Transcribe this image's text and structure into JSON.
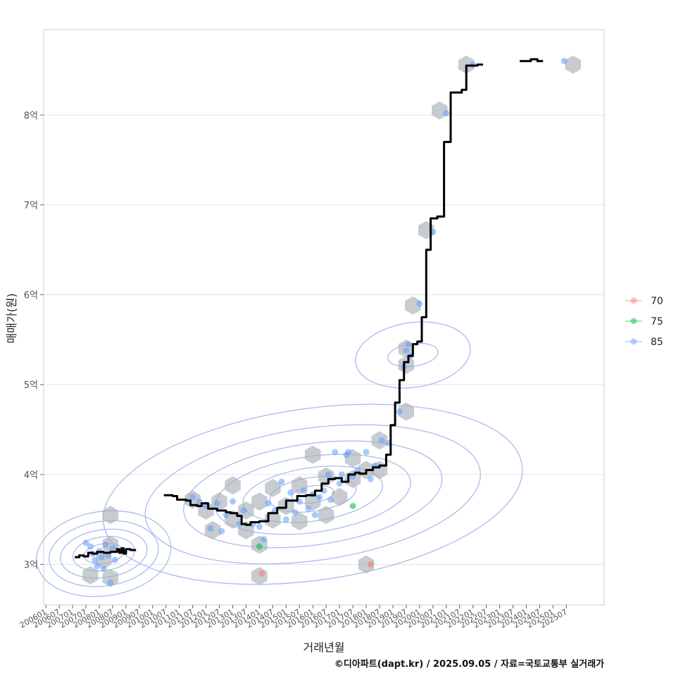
{
  "chart_data": {
    "type": "scatter",
    "xlabel": "거래년월",
    "ylabel": "매매가(원)",
    "caption": "©디아파트(dapt.kr) / 2025.09.05 / 자료=국토교통부 실거래가",
    "ylim": [
      2.55,
      8.95
    ],
    "xlim": [
      "2005-12",
      "2026-12"
    ],
    "y_ticks": [
      {
        "value": 3,
        "label": "3억"
      },
      {
        "value": 4,
        "label": "4억"
      },
      {
        "value": 5,
        "label": "5억"
      },
      {
        "value": 6,
        "label": "6억"
      },
      {
        "value": 7,
        "label": "7억"
      },
      {
        "value": 8,
        "label": "8억"
      }
    ],
    "x_ticks": [
      "200601",
      "200607",
      "200701",
      "200707",
      "200801",
      "200807",
      "200901",
      "200907",
      "201001",
      "201007",
      "201101",
      "201107",
      "201201",
      "201207",
      "201301",
      "201307",
      "201401",
      "201407",
      "201501",
      "201507",
      "201601",
      "201607",
      "201701",
      "201707",
      "201801",
      "201807",
      "201901",
      "201907",
      "202001",
      "202007",
      "202101",
      "202107",
      "202201",
      "202207",
      "202301",
      "202307",
      "202401",
      "202407",
      "202501",
      "202507"
    ],
    "grid": true,
    "legend": {
      "position": "right",
      "items": [
        {
          "label": "70",
          "color": "#f8766d"
        },
        {
          "label": "75",
          "color": "#00ba38"
        },
        {
          "label": "85",
          "color": "#619cff"
        }
      ]
    },
    "colors": {
      "hexbin": "#a9b1b8",
      "contour": "#aabcee",
      "trend_line": "#000000"
    },
    "series": [
      {
        "name": "85",
        "points": [
          [
            "2007-07",
            3.24
          ],
          [
            "2007-09",
            3.2
          ],
          [
            "2007-10",
            3.12
          ],
          [
            "2007-11",
            3.05
          ],
          [
            "2007-12",
            2.98
          ],
          [
            "2008-01",
            3.15
          ],
          [
            "2008-02",
            3.08
          ],
          [
            "2008-03",
            2.95
          ],
          [
            "2008-04",
            3.22
          ],
          [
            "2008-05",
            3.1
          ],
          [
            "2008-06",
            2.8
          ],
          [
            "2008-07",
            3.18
          ],
          [
            "2008-08",
            3.05
          ],
          [
            "2011-07",
            3.75
          ],
          [
            "2011-10",
            3.7
          ],
          [
            "2012-01",
            3.65
          ],
          [
            "2012-03",
            3.4
          ],
          [
            "2012-06",
            3.68
          ],
          [
            "2012-08",
            3.37
          ],
          [
            "2012-10",
            3.55
          ],
          [
            "2013-01",
            3.7
          ],
          [
            "2013-04",
            3.45
          ],
          [
            "2013-06",
            3.6
          ],
          [
            "2013-10",
            3.45
          ],
          [
            "2014-01",
            3.42
          ],
          [
            "2014-03",
            3.28
          ],
          [
            "2014-05",
            3.68
          ],
          [
            "2014-08",
            3.6
          ],
          [
            "2014-11",
            3.92
          ],
          [
            "2015-01",
            3.5
          ],
          [
            "2015-03",
            3.8
          ],
          [
            "2015-05",
            3.58
          ],
          [
            "2015-07",
            3.7
          ],
          [
            "2015-09",
            3.82
          ],
          [
            "2015-11",
            3.62
          ],
          [
            "2016-01",
            3.78
          ],
          [
            "2016-02",
            3.55
          ],
          [
            "2016-04",
            3.75
          ],
          [
            "2016-06",
            3.82
          ],
          [
            "2016-08",
            4.0
          ],
          [
            "2016-09",
            3.72
          ],
          [
            "2016-11",
            4.25
          ],
          [
            "2017-01",
            3.9
          ],
          [
            "2017-02",
            4.0
          ],
          [
            "2017-04",
            4.22
          ],
          [
            "2017-05",
            4.25
          ],
          [
            "2017-07",
            3.98
          ],
          [
            "2017-09",
            4.05
          ],
          [
            "2018-01",
            4.25
          ],
          [
            "2018-03",
            3.95
          ],
          [
            "2018-05",
            4.1
          ],
          [
            "2018-08",
            4.38
          ],
          [
            "2018-11",
            4.35
          ],
          [
            "2019-04",
            4.7
          ],
          [
            "2019-06",
            5.2
          ],
          [
            "2019-07",
            5.38
          ],
          [
            "2019-08",
            5.45
          ],
          [
            "2019-09",
            5.32
          ],
          [
            "2020-01",
            5.9
          ],
          [
            "2020-07",
            6.7
          ],
          [
            "2021-01",
            8.02
          ],
          [
            "2022-01",
            8.56
          ],
          [
            "2025-06",
            8.6
          ]
        ]
      },
      {
        "name": "75",
        "points": [
          [
            "2014-01",
            3.2
          ],
          [
            "2017-07",
            3.65
          ]
        ]
      },
      {
        "name": "70",
        "points": [
          [
            "2014-02",
            2.9
          ],
          [
            "2018-03",
            3.0
          ]
        ]
      }
    ],
    "hexbins": [
      [
        "2007-09",
        2.88
      ],
      [
        "2008-03",
        3.05
      ],
      [
        "2008-06",
        3.22
      ],
      [
        "2008-06",
        2.85
      ],
      [
        "2008-06",
        3.55
      ],
      [
        "2011-07",
        3.72
      ],
      [
        "2012-01",
        3.6
      ],
      [
        "2012-07",
        3.7
      ],
      [
        "2012-04",
        3.38
      ],
      [
        "2013-01",
        3.5
      ],
      [
        "2013-01",
        3.88
      ],
      [
        "2013-07",
        3.6
      ],
      [
        "2013-07",
        3.38
      ],
      [
        "2014-01",
        3.7
      ],
      [
        "2014-01",
        3.22
      ],
      [
        "2014-01",
        2.87
      ],
      [
        "2014-07",
        3.5
      ],
      [
        "2014-07",
        3.85
      ],
      [
        "2015-01",
        3.65
      ],
      [
        "2015-07",
        3.88
      ],
      [
        "2015-07",
        3.48
      ],
      [
        "2016-01",
        3.7
      ],
      [
        "2016-07",
        3.55
      ],
      [
        "2016-07",
        3.98
      ],
      [
        "2016-01",
        4.22
      ],
      [
        "2017-01",
        3.75
      ],
      [
        "2017-07",
        4.18
      ],
      [
        "2017-07",
        3.95
      ],
      [
        "2018-01",
        4.05
      ],
      [
        "2018-07",
        4.38
      ],
      [
        "2018-07",
        4.05
      ],
      [
        "2018-01",
        3.0
      ],
      [
        "2019-07",
        4.7
      ],
      [
        "2019-07",
        5.22
      ],
      [
        "2019-07",
        5.4
      ],
      [
        "2019-10",
        5.88
      ],
      [
        "2020-04",
        6.72
      ],
      [
        "2020-10",
        8.05
      ],
      [
        "2021-10",
        8.56
      ],
      [
        "2025-10",
        8.56
      ]
    ],
    "trend_line": [
      {
        "points": [
          [
            "2007-02",
            3.08
          ],
          [
            "2007-04",
            3.1
          ],
          [
            "2007-06",
            3.09
          ],
          [
            "2007-08",
            3.13
          ],
          [
            "2007-10",
            3.12
          ],
          [
            "2007-12",
            3.14
          ],
          [
            "2008-03",
            3.13
          ],
          [
            "2008-06",
            3.14
          ],
          [
            "2008-09",
            3.17
          ],
          [
            "2008-10",
            3.13
          ],
          [
            "2008-11",
            3.18
          ],
          [
            "2008-12",
            3.12
          ],
          [
            "2009-01",
            3.17
          ],
          [
            "2009-03",
            3.16
          ]
        ]
      },
      {
        "points": [
          [
            "2010-06",
            3.77
          ],
          [
            "2010-10",
            3.76
          ],
          [
            "2010-12",
            3.72
          ],
          [
            "2011-04",
            3.71
          ],
          [
            "2011-06",
            3.66
          ],
          [
            "2011-09",
            3.65
          ],
          [
            "2011-11",
            3.68
          ],
          [
            "2012-02",
            3.62
          ],
          [
            "2012-06",
            3.6
          ],
          [
            "2012-10",
            3.58
          ],
          [
            "2012-12",
            3.57
          ],
          [
            "2013-03",
            3.54
          ],
          [
            "2013-05",
            3.45
          ],
          [
            "2013-07",
            3.44
          ],
          [
            "2013-09",
            3.47
          ],
          [
            "2014-01",
            3.48
          ],
          [
            "2014-05",
            3.57
          ],
          [
            "2014-09",
            3.63
          ],
          [
            "2015-01",
            3.71
          ],
          [
            "2015-06",
            3.76
          ],
          [
            "2015-10",
            3.77
          ],
          [
            "2016-02",
            3.82
          ],
          [
            "2016-05",
            3.9
          ],
          [
            "2016-08",
            3.95
          ],
          [
            "2016-11",
            3.96
          ],
          [
            "2017-02",
            3.92
          ],
          [
            "2017-05",
            4.0
          ],
          [
            "2017-08",
            4.02
          ],
          [
            "2017-10",
            4.01
          ],
          [
            "2018-01",
            4.05
          ],
          [
            "2018-04",
            4.08
          ],
          [
            "2018-07",
            4.1
          ],
          [
            "2018-10",
            4.22
          ],
          [
            "2018-12",
            4.55
          ],
          [
            "2019-02",
            4.8
          ],
          [
            "2019-04",
            5.05
          ],
          [
            "2019-06",
            5.25
          ],
          [
            "2019-08",
            5.32
          ],
          [
            "2019-10",
            5.45
          ],
          [
            "2019-12",
            5.48
          ],
          [
            "2020-02",
            5.75
          ],
          [
            "2020-04",
            6.5
          ],
          [
            "2020-06",
            6.85
          ],
          [
            "2020-09",
            6.87
          ],
          [
            "2020-12",
            7.7
          ],
          [
            "2021-03",
            8.25
          ],
          [
            "2021-08",
            8.28
          ],
          [
            "2021-10",
            8.55
          ],
          [
            "2022-03",
            8.56
          ]
        ]
      },
      {
        "points": [
          [
            "2023-10",
            8.6
          ],
          [
            "2024-03",
            8.62
          ],
          [
            "2024-06",
            8.6
          ]
        ]
      }
    ]
  }
}
